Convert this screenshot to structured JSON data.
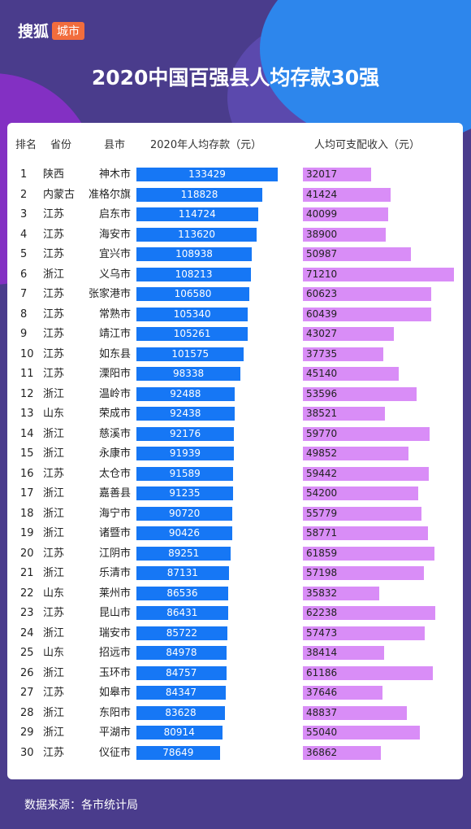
{
  "logo": {
    "main": "搜狐",
    "badge": "城市"
  },
  "title": "2020中国百强县人均存款30强",
  "headers": {
    "rank": "排名",
    "province": "省份",
    "county": "县市",
    "deposit": "2020年人均存款（元）",
    "income": "人均可支配收入（元）"
  },
  "footer": "数据来源：各市统计局",
  "colors": {
    "deposit_bar": "#1677f5",
    "income_bar": "#d98df7",
    "background": "#4a3c8c"
  },
  "chart_data": {
    "type": "bar",
    "title": "2020中国百强县人均存款30强",
    "columns": [
      "排名",
      "省份",
      "县市",
      "2020年人均存款（元）",
      "人均可支配收入（元）"
    ],
    "rows": [
      {
        "rank": "1",
        "province": "陕西",
        "county": "神木市",
        "deposit": 133429,
        "income": 32017
      },
      {
        "rank": "2",
        "province": "内蒙古",
        "county": "准格尔旗",
        "deposit": 118828,
        "income": 41424
      },
      {
        "rank": "3",
        "province": "江苏",
        "county": "启东市",
        "deposit": 114724,
        "income": 40099
      },
      {
        "rank": "4",
        "province": "江苏",
        "county": "海安市",
        "deposit": 113620,
        "income": 38900
      },
      {
        "rank": "5",
        "province": "江苏",
        "county": "宜兴市",
        "deposit": 108938,
        "income": 50987
      },
      {
        "rank": "6",
        "province": "浙江",
        "county": "义乌市",
        "deposit": 108213,
        "income": 71210
      },
      {
        "rank": "7",
        "province": "江苏",
        "county": "张家港市",
        "deposit": 106580,
        "income": 60623
      },
      {
        "rank": "8",
        "province": "江苏",
        "county": "常熟市",
        "deposit": 105340,
        "income": 60439
      },
      {
        "rank": "9",
        "province": "江苏",
        "county": "靖江市",
        "deposit": 105261,
        "income": 43027
      },
      {
        "rank": "10",
        "province": "江苏",
        "county": "如东县",
        "deposit": 101575,
        "income": 37735
      },
      {
        "rank": "11",
        "province": "江苏",
        "county": "溧阳市",
        "deposit": 98338,
        "income": 45140
      },
      {
        "rank": "12",
        "province": "浙江",
        "county": "温岭市",
        "deposit": 92488,
        "income": 53596
      },
      {
        "rank": "13",
        "province": "山东",
        "county": "荣成市",
        "deposit": 92438,
        "income": 38521
      },
      {
        "rank": "14",
        "province": "浙江",
        "county": "慈溪市",
        "deposit": 92176,
        "income": 59770
      },
      {
        "rank": "15",
        "province": "浙江",
        "county": "永康市",
        "deposit": 91939,
        "income": 49852
      },
      {
        "rank": "16",
        "province": "江苏",
        "county": "太仓市",
        "deposit": 91589,
        "income": 59442
      },
      {
        "rank": "17",
        "province": "浙江",
        "county": "嘉善县",
        "deposit": 91235,
        "income": 54200
      },
      {
        "rank": "18",
        "province": "浙江",
        "county": "海宁市",
        "deposit": 90720,
        "income": 55779
      },
      {
        "rank": "19",
        "province": "浙江",
        "county": "诸暨市",
        "deposit": 90426,
        "income": 58771
      },
      {
        "rank": "20",
        "province": "江苏",
        "county": "江阴市",
        "deposit": 89251,
        "income": 61859
      },
      {
        "rank": "21",
        "province": "浙江",
        "county": "乐清市",
        "deposit": 87131,
        "income": 57198
      },
      {
        "rank": "22",
        "province": "山东",
        "county": "莱州市",
        "deposit": 86536,
        "income": 35832
      },
      {
        "rank": "23",
        "province": "江苏",
        "county": "昆山市",
        "deposit": 86431,
        "income": 62238
      },
      {
        "rank": "24",
        "province": "浙江",
        "county": "瑞安市",
        "deposit": 85722,
        "income": 57473
      },
      {
        "rank": "25",
        "province": "山东",
        "county": "招远市",
        "deposit": 84978,
        "income": 38414
      },
      {
        "rank": "26",
        "province": "浙江",
        "county": "玉环市",
        "deposit": 84757,
        "income": 61186
      },
      {
        "rank": "27",
        "province": "江苏",
        "county": "如皋市",
        "deposit": 84347,
        "income": 37646
      },
      {
        "rank": "28",
        "province": "浙江",
        "county": "东阳市",
        "deposit": 83628,
        "income": 48837
      },
      {
        "rank": "29",
        "province": "浙江",
        "county": "平湖市",
        "deposit": 80914,
        "income": 55040
      },
      {
        "rank": "30",
        "province": "江苏",
        "county": "仪征市",
        "deposit": 78649,
        "income": 36862
      }
    ]
  }
}
